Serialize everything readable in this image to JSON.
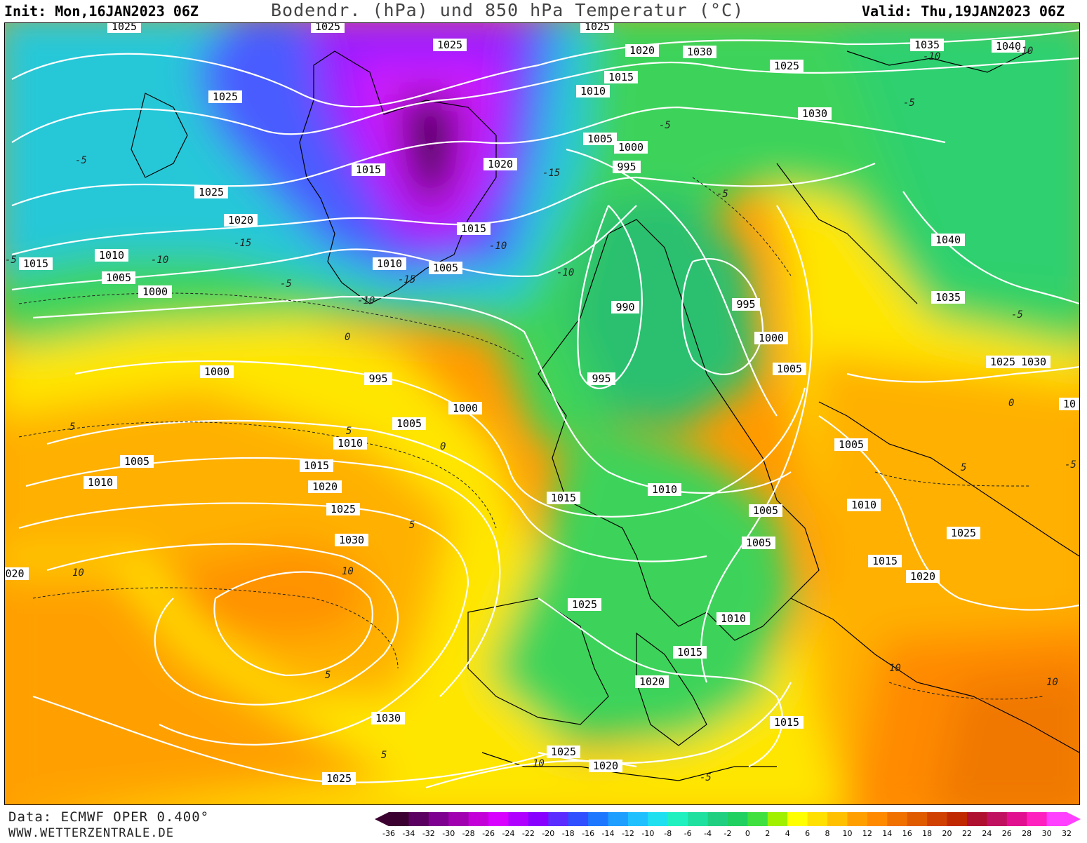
{
  "header": {
    "init": "Init: Mon,16JAN2023 06Z",
    "title": "Bodendr. (hPa) und 850 hPa Temperatur (°C)",
    "valid": "Valid: Thu,19JAN2023 06Z"
  },
  "footer": {
    "data_source": "Data: ECMWF OPER 0.400°",
    "website": "WWW.WETTERZENTRALE.DE"
  },
  "colorbar": {
    "ticks": [
      "-36",
      "-34",
      "-32",
      "-30",
      "-28",
      "-26",
      "-24",
      "-22",
      "-20",
      "-18",
      "-16",
      "-14",
      "-12",
      "-10",
      "-8",
      "-6",
      "-4",
      "-2",
      "0",
      "2",
      "4",
      "6",
      "8",
      "10",
      "12",
      "14",
      "16",
      "18",
      "20",
      "22",
      "24",
      "26",
      "28",
      "30",
      "32"
    ],
    "colors": [
      "#3b0030",
      "#5a0060",
      "#7d0090",
      "#a000b0",
      "#c300d8",
      "#d800ff",
      "#b000ff",
      "#8800ff",
      "#5a2cff",
      "#3050ff",
      "#1e78ff",
      "#1e9eff",
      "#20c0ff",
      "#20e0f0",
      "#20f0c0",
      "#20e0a0",
      "#20d080",
      "#20d060",
      "#40e040",
      "#a0f000",
      "#ffff00",
      "#ffe000",
      "#ffc000",
      "#ffa000",
      "#ff8a00",
      "#f07000",
      "#e05a00",
      "#d04000",
      "#c02800",
      "#b01030",
      "#c01060",
      "#e01090",
      "#ff20c0",
      "#ff40ff"
    ]
  },
  "colors": {
    "background": "#ffffff",
    "isobar": "#ffffff",
    "coastline": "#000000"
  },
  "map": {
    "isobar_labels": [
      "1025",
      "1025",
      "1020",
      "1030",
      "1025",
      "1035",
      "1040",
      "1025",
      "1030",
      "1015",
      "1010",
      "1020",
      "1005",
      "1000",
      "1015",
      "995",
      "1020",
      "1025",
      "1015",
      "1020",
      "1015",
      "1010",
      "1005",
      "1010",
      "1005",
      "1010",
      "1005",
      "1000",
      "990",
      "995",
      "1000",
      "1040",
      "1035",
      "1015",
      "1000",
      "995",
      "1000",
      "995",
      "1005",
      "1030",
      "1025",
      "1005",
      "1010",
      "1010",
      "1015",
      "1005",
      "1015",
      "1010",
      "1020",
      "1025",
      "1030",
      "1005",
      "1010",
      "1025",
      "1005",
      "1015",
      "020",
      "1020",
      "1025",
      "1010",
      "1015",
      "1020",
      "1030",
      "1025",
      "1020",
      "1015",
      "10"
    ],
    "temperature_labels": [
      "-5",
      "-10",
      "-15",
      "-5",
      "-10",
      "-5",
      "-10",
      "-5",
      "-15",
      "-10",
      "-15",
      "-10",
      "-5",
      "-10",
      "-5",
      "0",
      "-5",
      "0",
      "5",
      "0",
      "5",
      "5",
      "10",
      "10",
      "5",
      "10",
      "5",
      "10",
      "10",
      "5",
      "-5",
      "-5"
    ]
  }
}
